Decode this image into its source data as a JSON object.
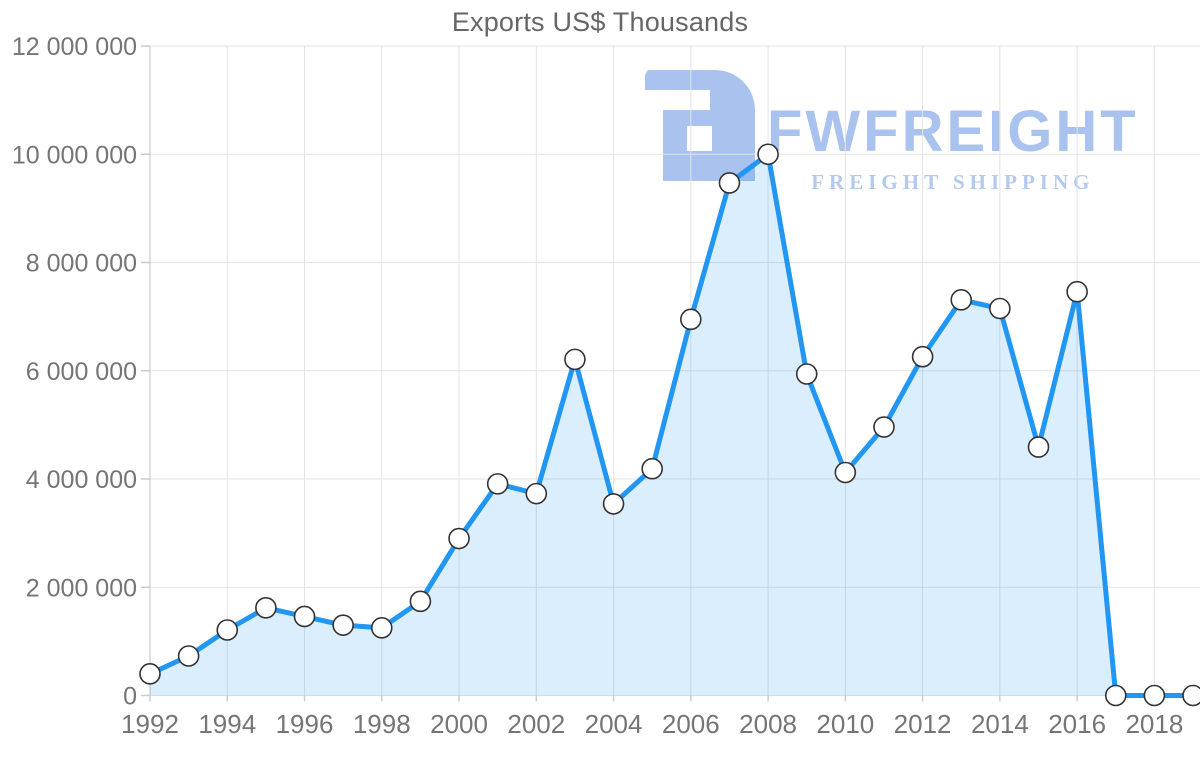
{
  "chart_data": {
    "type": "area",
    "title": "Exports US$ Thousands",
    "xlabel": "",
    "ylabel": "",
    "x": [
      1992,
      1993,
      1994,
      1995,
      1996,
      1997,
      1998,
      1999,
      2000,
      2001,
      2002,
      2003,
      2004,
      2005,
      2006,
      2007,
      2008,
      2009,
      2010,
      2011,
      2012,
      2013,
      2014,
      2015,
      2016,
      2017,
      2018,
      2019
    ],
    "values": [
      400000,
      730000,
      1210000,
      1620000,
      1460000,
      1300000,
      1250000,
      1740000,
      2900000,
      3910000,
      3730000,
      6210000,
      3540000,
      4190000,
      6950000,
      9470000,
      10000000,
      5940000,
      4120000,
      4960000,
      6260000,
      7310000,
      7150000,
      4590000,
      7460000,
      0,
      0,
      0
    ],
    "ylim": [
      0,
      12000000
    ],
    "y_tick_step": 2000000,
    "y_tick_labels": [
      "0",
      "2 000 000",
      "4 000 000",
      "6 000 000",
      "8 000 000",
      "10 000 000",
      "12 000 000"
    ],
    "x_tick_labels": [
      "1992",
      "1994",
      "1996",
      "1998",
      "2000",
      "2002",
      "2004",
      "2006",
      "2008",
      "2010",
      "2012",
      "2014",
      "2016",
      "2018"
    ],
    "grid": true,
    "legend_position": "none",
    "colors": {
      "line": "#2196f3",
      "area_fill": "rgba(33,150,243,0.16)",
      "marker_fill": "#ffffff",
      "marker_stroke": "#333333",
      "gridline": "#e3e3e3",
      "axis_line": "#c2c2c2",
      "tick": "#cccccc",
      "tick_label": "#757575",
      "title": "#666666"
    }
  },
  "watermark": {
    "brand": "FWFREIGHT",
    "tagline": "FREIGHT SHIPPING",
    "color": "#a9c3ee"
  }
}
